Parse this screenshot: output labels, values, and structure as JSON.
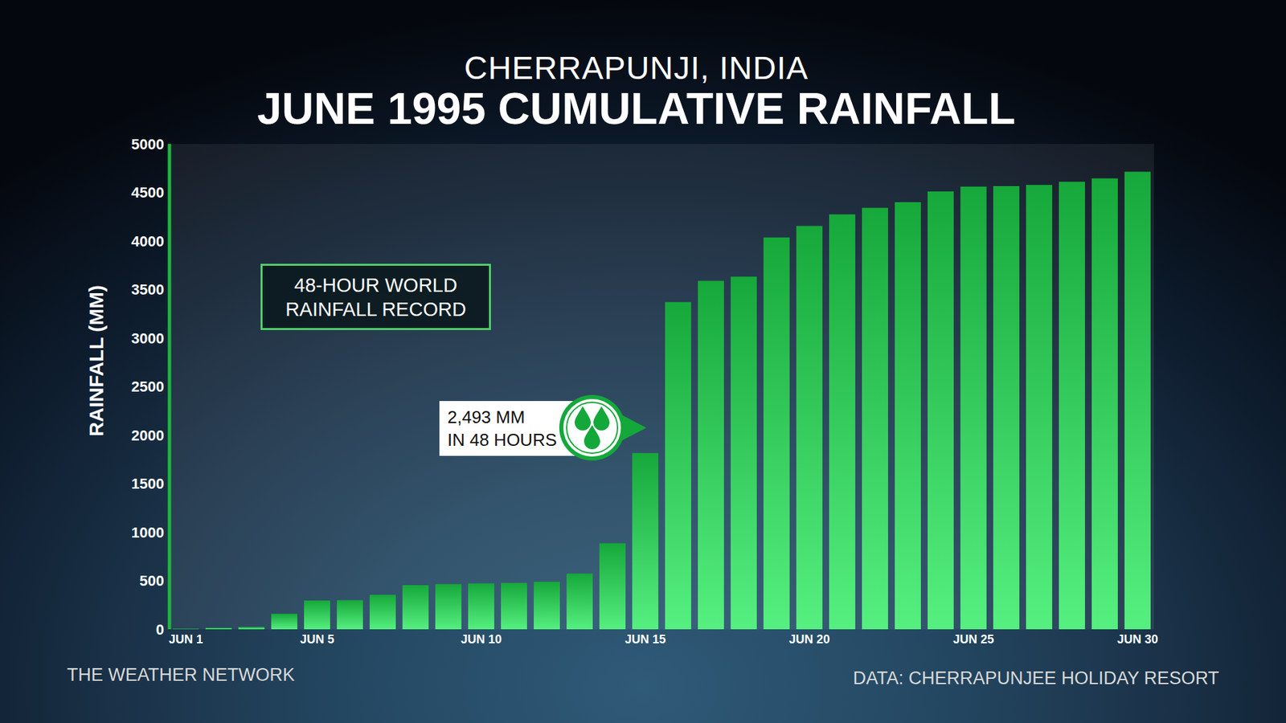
{
  "chart_data": {
    "type": "bar",
    "subtitle": "CHERRAPUNJI, INDIA",
    "title": "JUNE 1995 CUMULATIVE RAINFALL",
    "y_label": "RAINFALL (MM)",
    "credit": "THE WEATHER NETWORK",
    "source": "DATA: CHERRAPUNJEE HOLIDAY RESORT",
    "annotations": [
      "48-HOUR WORLD RAINFALL RECORD",
      "2,493 MM IN 48 HOURS"
    ],
    "categories": [
      "JUN 1",
      null,
      null,
      null,
      "JUN 5",
      null,
      null,
      null,
      null,
      "JUN 10",
      null,
      null,
      null,
      null,
      "JUN 15",
      null,
      null,
      null,
      null,
      "JUN 20",
      null,
      null,
      null,
      null,
      "JUN 25",
      null,
      null,
      null,
      null,
      "JUN 30"
    ],
    "values": [
      5,
      15,
      25,
      160,
      296,
      300,
      355,
      456,
      465,
      473,
      478,
      490,
      574,
      887,
      1816,
      3370,
      3590,
      3632,
      4037,
      4155,
      4274,
      4341,
      4400,
      4510,
      4561,
      4565,
      4578,
      4611,
      4645,
      4713
    ],
    "color": "#16a83a",
    "ylim": [
      0,
      5000
    ],
    "yticks": [
      0,
      500,
      1000,
      1500,
      2000,
      2500,
      3000,
      3500,
      4000,
      4500,
      5000
    ],
    "grid": false
  }
}
